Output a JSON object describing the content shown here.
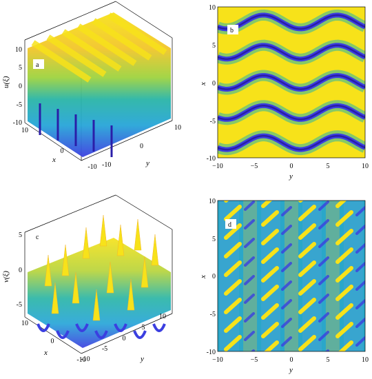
{
  "panels": {
    "a": {
      "letter": "a",
      "zlabel": "u(ξ)",
      "xlabel": "x",
      "ylabel": "y",
      "z_ticks": [
        "10",
        "5",
        "0",
        "-5",
        "-10"
      ],
      "x_ticks": [
        "10",
        "0",
        "-10"
      ],
      "y_ticks": [
        "10",
        "0",
        "-10"
      ]
    },
    "b": {
      "letter": "b",
      "xlabel": "y",
      "ylabel": "x",
      "x_ticks": [
        "−10",
        "−5",
        "0",
        "5",
        "10"
      ],
      "y_ticks": [
        "10",
        "5",
        "0",
        "-5",
        "-10"
      ]
    },
    "c": {
      "letter": "c",
      "zlabel": "v(ξ)",
      "xlabel": "x",
      "ylabel": "y",
      "z_ticks": [
        "5",
        "0",
        "-5"
      ],
      "x_ticks": [
        "10",
        "0",
        "-10"
      ],
      "y_ticks": [
        "10",
        "5",
        "0",
        "-5",
        "-10"
      ]
    },
    "d": {
      "letter": "d",
      "xlabel": "y",
      "ylabel": "x",
      "x_ticks": [
        "−10",
        "−5",
        "0",
        "5",
        "10"
      ],
      "y_ticks": [
        "10",
        "5",
        "0",
        "-5",
        "-10"
      ]
    }
  },
  "colors": {
    "high": "#f7e21a",
    "mid_high": "#f2b62c",
    "mid": "#2ab5a6",
    "low_mid": "#27a5d8",
    "low": "#3b3fe0",
    "deep": "#2a1ea8"
  }
}
